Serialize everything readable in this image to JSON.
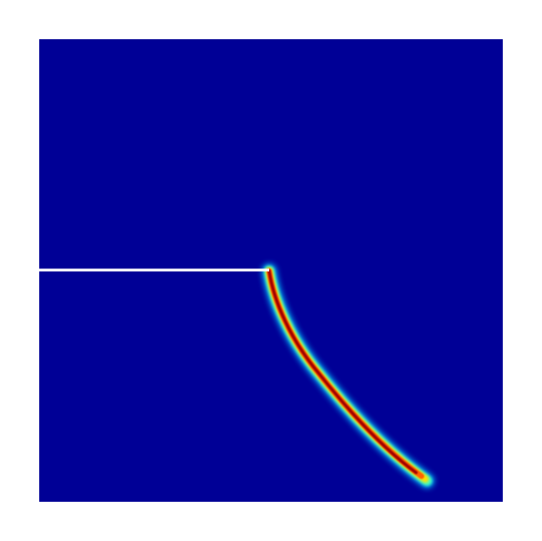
{
  "figure": {
    "background": "#ffffff",
    "domain_color": "#000096",
    "notch_color": "#ffffff",
    "colormap": [
      "#00008c",
      "#0040ff",
      "#00c8ff",
      "#60ffa0",
      "#ffff00",
      "#ff8000",
      "#d00000",
      "#8c0000"
    ]
  }
}
